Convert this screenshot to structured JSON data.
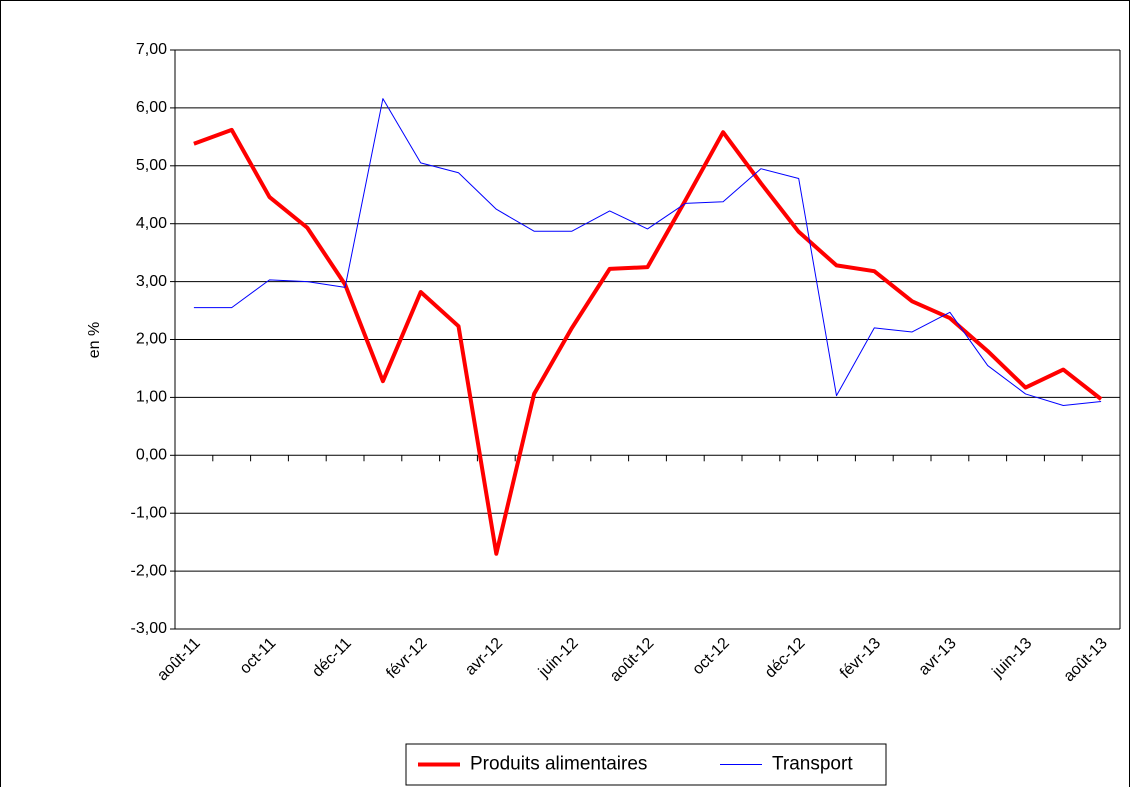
{
  "chart_data": {
    "type": "line",
    "y_label": "en %",
    "categories": [
      "août-11",
      null,
      "oct-11",
      null,
      "déc-11",
      null,
      "févr-12",
      null,
      "avr-12",
      null,
      "juin-12",
      null,
      "août-12",
      null,
      "oct-12",
      null,
      "déc-12",
      null,
      "févr-13",
      null,
      "avr-13",
      null,
      "juin-13",
      null,
      "août-13"
    ],
    "series": [
      {
        "name": "Produits alimentaires",
        "color": "#ff0000",
        "width": 4,
        "values": [
          5.38,
          5.62,
          4.46,
          3.93,
          2.95,
          1.28,
          2.82,
          2.23,
          -1.7,
          1.06,
          2.2,
          3.22,
          3.25,
          4.4,
          5.58,
          4.7,
          3.86,
          3.28,
          3.18,
          2.66,
          2.37,
          1.8,
          1.17,
          1.48,
          0.97
        ]
      },
      {
        "name": "Transport",
        "color": "#0000ff",
        "width": 1,
        "values": [
          2.55,
          2.55,
          3.03,
          3.0,
          2.9,
          6.16,
          5.05,
          4.88,
          4.25,
          3.87,
          3.87,
          4.22,
          3.91,
          4.35,
          4.38,
          4.95,
          4.78,
          1.03,
          2.2,
          2.13,
          2.47,
          1.55,
          1.06,
          0.86,
          0.93
        ]
      }
    ],
    "ylim": [
      -3,
      7
    ],
    "yticks": [
      {
        "value": -3,
        "label": "-3,00"
      },
      {
        "value": -2,
        "label": "-2,00"
      },
      {
        "value": -1,
        "label": "-1,00"
      },
      {
        "value": 0,
        "label": "0,00"
      },
      {
        "value": 1,
        "label": "1,00"
      },
      {
        "value": 2,
        "label": "2,00"
      },
      {
        "value": 3,
        "label": "3,00"
      },
      {
        "value": 4,
        "label": "4,00"
      },
      {
        "value": 5,
        "label": "5,00"
      },
      {
        "value": 6,
        "label": "6,00"
      },
      {
        "value": 7,
        "label": "7,00"
      }
    ],
    "grid": true,
    "legend": "bottom"
  }
}
